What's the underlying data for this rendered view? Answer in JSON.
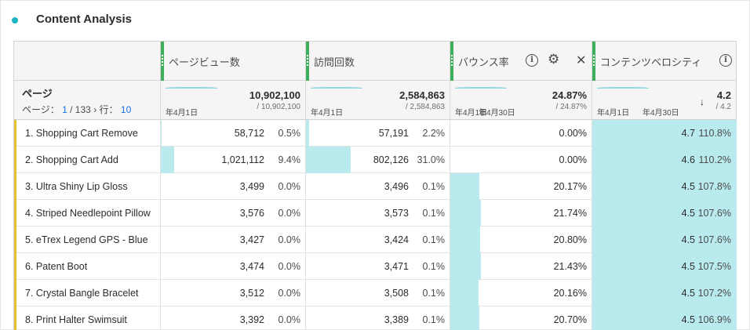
{
  "panel": {
    "title": "Content Analysis",
    "accent": "#1cb5c4"
  },
  "columns": [
    {
      "label": "ページビュー数"
    },
    {
      "label": "訪問回数"
    },
    {
      "label": "バウンス率"
    },
    {
      "label": "コンテンツベロシティ"
    }
  ],
  "dimension": {
    "label": "ページ",
    "pager_prefix": "ページ：",
    "page": "1",
    "pages": "/ 133",
    "rows_label": "行：",
    "rows_count": "10"
  },
  "summary": [
    {
      "total": "10,902,100",
      "sub": "/ 10,902,100",
      "date1": "年4月1日",
      "date2": ""
    },
    {
      "total": "2,584,863",
      "sub": "/ 2,584,863",
      "date1": "年4月1日",
      "date2": ""
    },
    {
      "total": "24.87%",
      "sub": "/ 24.87%",
      "date1": "年4月1日",
      "date2": "年4月30日"
    },
    {
      "total": "4.2",
      "sub": "/ 4.2",
      "date1": "年4月1日",
      "date2": "年4月30日"
    }
  ],
  "rows": [
    {
      "name": "1. Shopping Cart Remove",
      "pv": "58,712",
      "pv_pct": "0.5%",
      "pv_frac": 0.005,
      "visits": "57,191",
      "visits_pct": "2.2%",
      "visits_frac": 0.022,
      "bounce": "0.00%",
      "bounce_frac": 0.0,
      "vel": "4.7",
      "vel_pct": "110.8%",
      "vel_frac": 1.0
    },
    {
      "name": "2. Shopping Cart Add",
      "pv": "1,021,112",
      "pv_pct": "9.4%",
      "pv_frac": 0.094,
      "visits": "802,126",
      "visits_pct": "31.0%",
      "visits_frac": 0.31,
      "bounce": "0.00%",
      "bounce_frac": 0.0,
      "vel": "4.6",
      "vel_pct": "110.2%",
      "vel_frac": 1.0
    },
    {
      "name": "3. Ultra Shiny Lip Gloss",
      "pv": "3,499",
      "pv_pct": "0.0%",
      "pv_frac": 0,
      "visits": "3,496",
      "visits_pct": "0.1%",
      "visits_frac": 0,
      "bounce": "20.17%",
      "bounce_frac": 0.2017,
      "vel": "4.5",
      "vel_pct": "107.8%",
      "vel_frac": 1.0
    },
    {
      "name": "4. Striped Needlepoint Pillow",
      "pv": "3,576",
      "pv_pct": "0.0%",
      "pv_frac": 0,
      "visits": "3,573",
      "visits_pct": "0.1%",
      "visits_frac": 0,
      "bounce": "21.74%",
      "bounce_frac": 0.2174,
      "vel": "4.5",
      "vel_pct": "107.6%",
      "vel_frac": 1.0
    },
    {
      "name": "5. eTrex Legend GPS - Blue",
      "pv": "3,427",
      "pv_pct": "0.0%",
      "pv_frac": 0,
      "visits": "3,424",
      "visits_pct": "0.1%",
      "visits_frac": 0,
      "bounce": "20.80%",
      "bounce_frac": 0.208,
      "vel": "4.5",
      "vel_pct": "107.6%",
      "vel_frac": 1.0
    },
    {
      "name": "6. Patent Boot",
      "pv": "3,474",
      "pv_pct": "0.0%",
      "pv_frac": 0,
      "visits": "3,471",
      "visits_pct": "0.1%",
      "visits_frac": 0,
      "bounce": "21.43%",
      "bounce_frac": 0.2143,
      "vel": "4.5",
      "vel_pct": "107.5%",
      "vel_frac": 1.0
    },
    {
      "name": "7. Crystal Bangle Bracelet",
      "pv": "3,512",
      "pv_pct": "0.0%",
      "pv_frac": 0,
      "visits": "3,508",
      "visits_pct": "0.1%",
      "visits_frac": 0,
      "bounce": "20.16%",
      "bounce_frac": 0.2016,
      "vel": "4.5",
      "vel_pct": "107.2%",
      "vel_frac": 1.0
    },
    {
      "name": "8. Print Halter Swimsuit",
      "pv": "3,392",
      "pv_pct": "0.0%",
      "pv_frac": 0,
      "visits": "3,389",
      "visits_pct": "0.1%",
      "visits_frac": 0,
      "bounce": "20.70%",
      "bounce_frac": 0.207,
      "vel": "4.5",
      "vel_pct": "106.9%",
      "vel_frac": 1.0
    }
  ],
  "colors": {
    "bar": "#b9eaee",
    "grip": "#3fae5a",
    "row_marker": "#e4c233",
    "link": "#1473e6"
  }
}
